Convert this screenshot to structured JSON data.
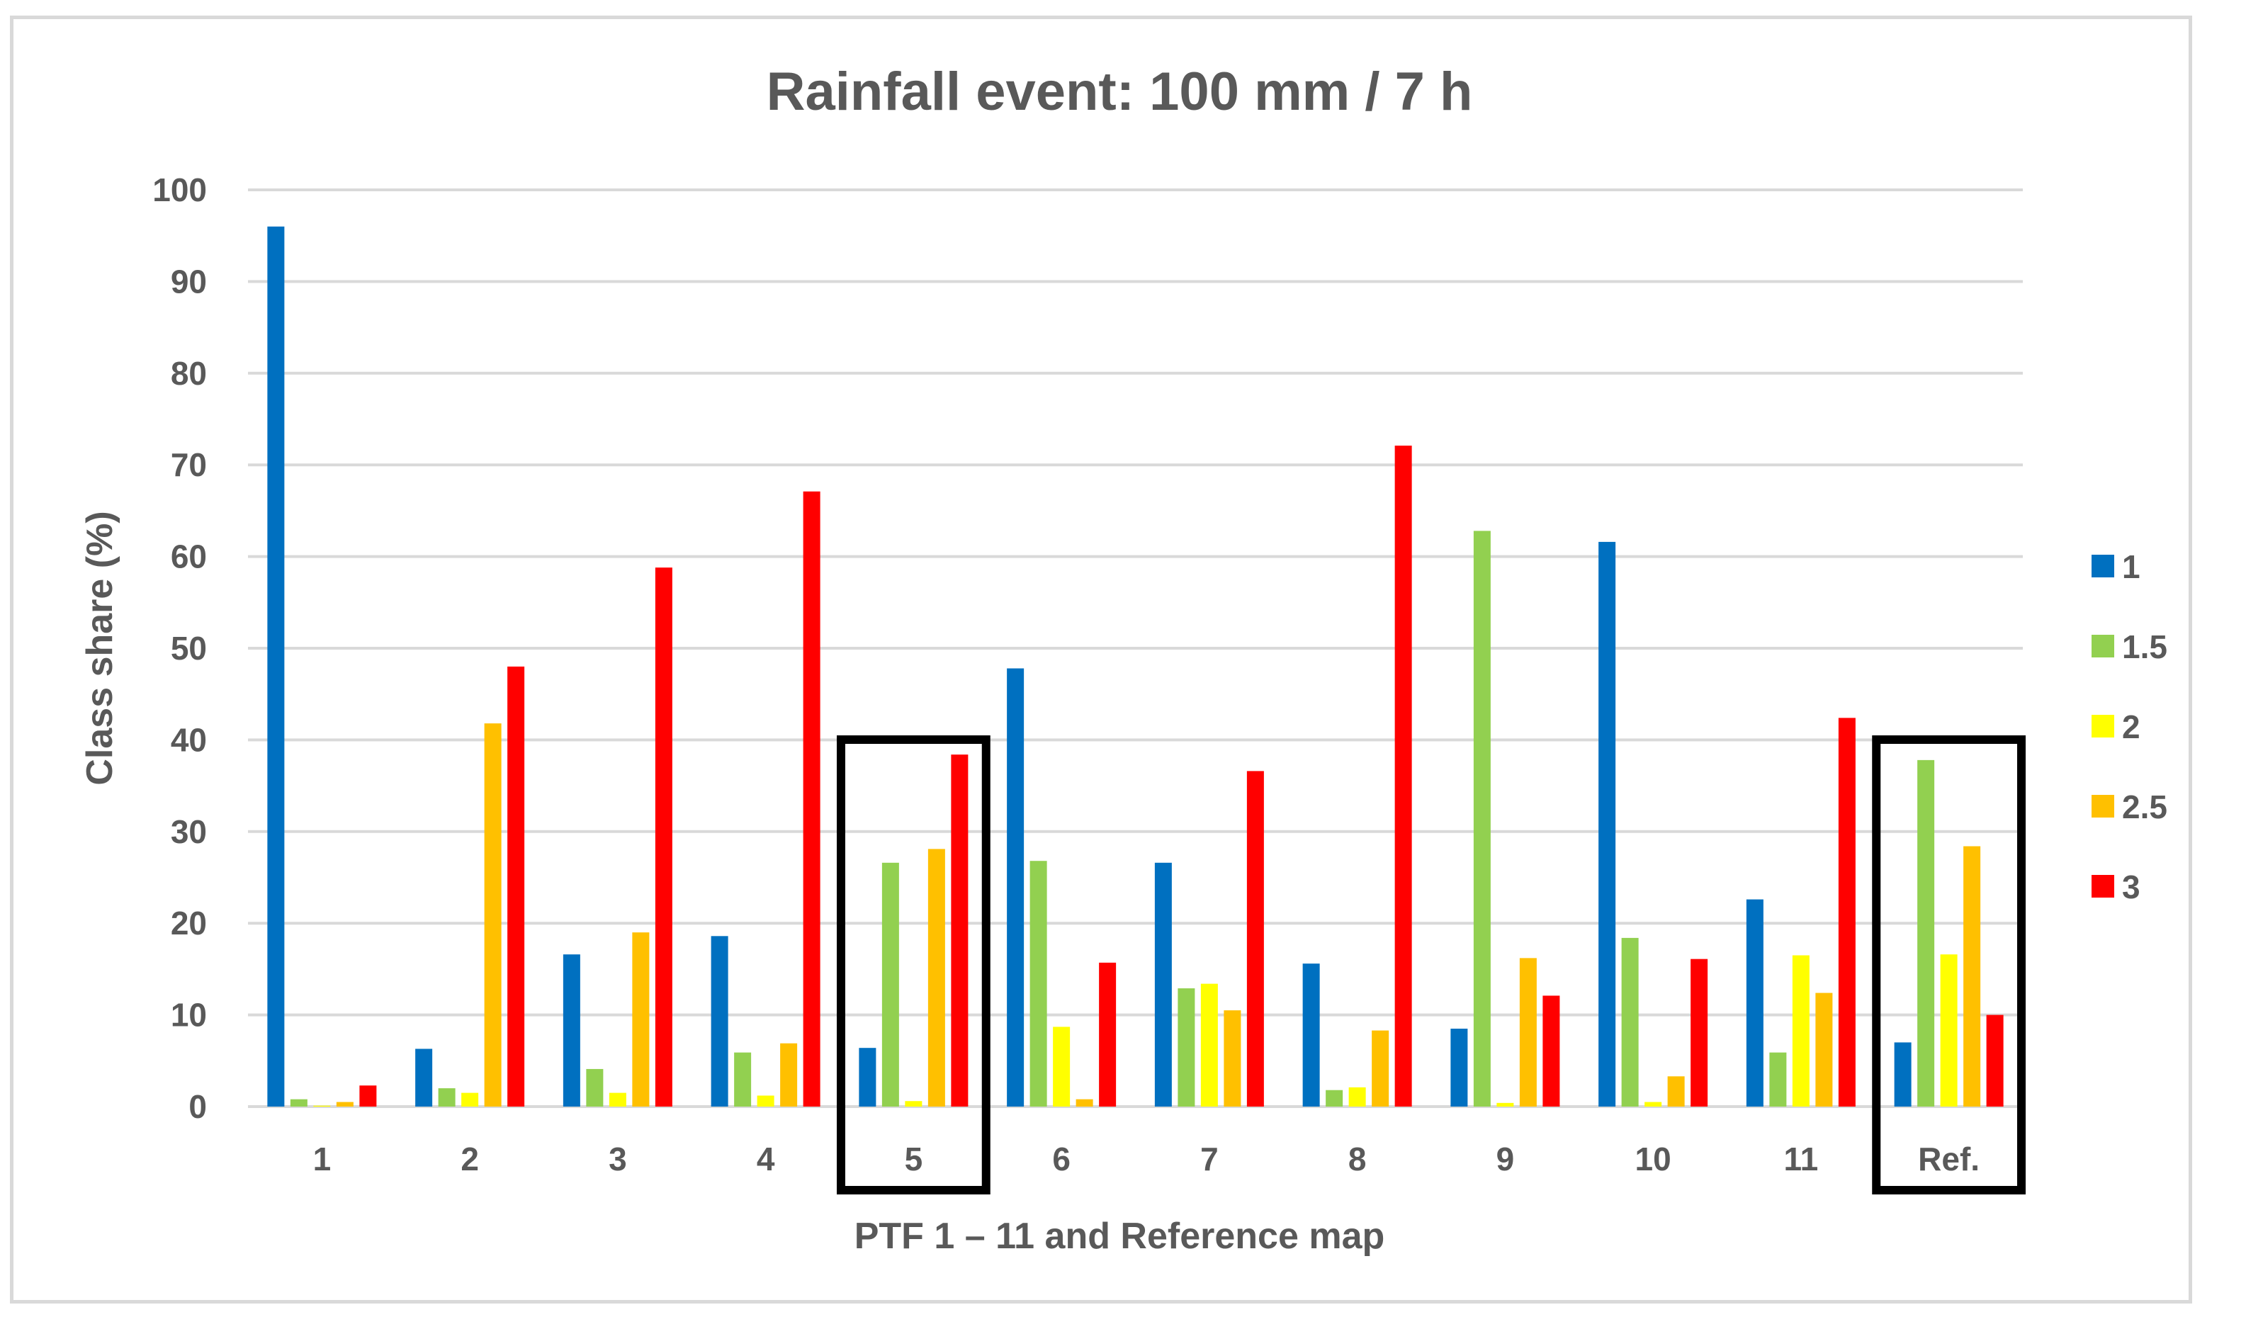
{
  "chart_data": {
    "type": "bar",
    "title": "Rainfall event:  100 mm / 7 h",
    "xlabel": "PTF 1 – 11 and Reference map",
    "ylabel": "Class share (%)",
    "ylim": [
      0,
      100
    ],
    "yticks": [
      0,
      10,
      20,
      30,
      40,
      50,
      60,
      70,
      80,
      90,
      100
    ],
    "grid": true,
    "legend_position": "right",
    "categories": [
      "1",
      "2",
      "3",
      "4",
      "5",
      "6",
      "7",
      "8",
      "9",
      "10",
      "11",
      "Ref."
    ],
    "highlighted_categories": [
      "5",
      "Ref."
    ],
    "series": [
      {
        "name": "1",
        "color": "#0070C0",
        "values": [
          96,
          6.3,
          16.6,
          18.6,
          6.4,
          47.8,
          26.6,
          15.6,
          8.5,
          61.6,
          22.6,
          7
        ]
      },
      {
        "name": "1.5",
        "color": "#92D050",
        "values": [
          0.8,
          2,
          4.1,
          5.9,
          26.6,
          26.8,
          12.9,
          1.8,
          62.8,
          18.4,
          5.9,
          37.8
        ]
      },
      {
        "name": "2",
        "color": "#FFFF00",
        "values": [
          0.1,
          1.5,
          1.5,
          1.2,
          0.6,
          8.7,
          13.4,
          2.1,
          0.4,
          0.5,
          16.5,
          16.6
        ]
      },
      {
        "name": "2.5",
        "color": "#FFC000",
        "values": [
          0.5,
          41.8,
          19,
          6.9,
          28.1,
          0.8,
          10.5,
          8.3,
          16.2,
          3.3,
          12.4,
          28.4
        ]
      },
      {
        "name": "3",
        "color": "#FF0000",
        "values": [
          2.3,
          48,
          58.8,
          67.1,
          38.4,
          15.7,
          36.6,
          72.1,
          12.1,
          16.1,
          42.4,
          10
        ]
      }
    ]
  }
}
